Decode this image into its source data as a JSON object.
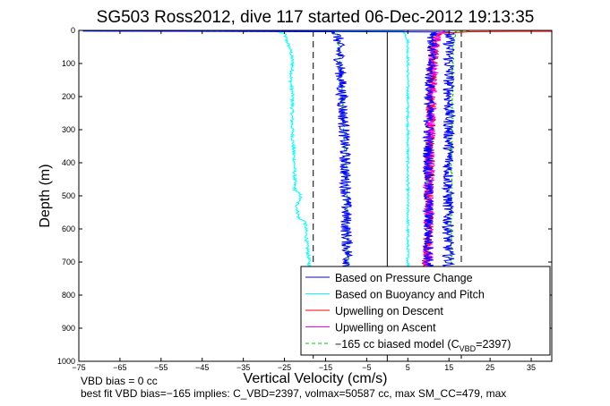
{
  "chart_data": {
    "type": "line",
    "title": "SG503 Ross2012, dive 117 started 06-Dec-2012 19:13:35",
    "xlabel": "Vertical Velocity (cm/s)",
    "ylabel": "Depth (m)",
    "xlim": [
      -75,
      40
    ],
    "ylim": [
      0,
      1000
    ],
    "y_reversed": true,
    "xticks": [
      -75,
      -65,
      -55,
      -45,
      -35,
      -25,
      -15,
      -5,
      5,
      15,
      25,
      35
    ],
    "xtick_labels": [
      "−75",
      "−65",
      "−55",
      "−45",
      "−35",
      "−25",
      "−15",
      "−5",
      "5",
      "15",
      "25",
      "35"
    ],
    "yticks": [
      0,
      100,
      200,
      300,
      400,
      500,
      600,
      700,
      800,
      900,
      1000
    ],
    "grid": false,
    "legend_position": "bottom-right",
    "legend": [
      {
        "label": "Based on Pressure Change",
        "color": "#0000ff",
        "dash": "solid"
      },
      {
        "label": "Based on Buoyancy and Pitch",
        "color": "#00ffff",
        "dash": "solid"
      },
      {
        "label": "Upwelling on Descent",
        "color": "#ff0000",
        "dash": "solid"
      },
      {
        "label": "Upwelling on Ascent",
        "color": "#ff00ff",
        "dash": "solid"
      },
      {
        "label_pre": "−165 cc biased model (C",
        "label_sub": "VBD",
        "label_post": "=2397)",
        "color": "#00cc00",
        "dash": "dashed"
      }
    ],
    "series": [
      {
        "color": "#00ffff",
        "noise": 0.4,
        "points": [
          [
            -74,
            2
          ],
          [
            -27,
            3
          ],
          [
            -25,
            10
          ],
          [
            -24.5,
            30
          ],
          [
            -23.5,
            60
          ],
          [
            -23,
            100
          ],
          [
            -23.5,
            150
          ],
          [
            -23,
            200
          ],
          [
            -23.2,
            260
          ],
          [
            -23,
            320
          ],
          [
            -22.6,
            400
          ],
          [
            -22.5,
            480
          ],
          [
            -21,
            500
          ],
          [
            -22,
            530
          ],
          [
            -21.5,
            570
          ],
          [
            -20,
            575
          ],
          [
            -19.5,
            650
          ],
          [
            -19,
            700
          ],
          [
            -19,
            720
          ]
        ]
      },
      {
        "color": "#00ffff",
        "noise": 0.3,
        "points": [
          [
            -60,
            1
          ],
          [
            4,
            2
          ],
          [
            5,
            30
          ],
          [
            5,
            700
          ],
          [
            5.3,
            720
          ]
        ]
      },
      {
        "color": "#00cc00",
        "noise": 0.25,
        "points": [
          [
            -70,
            2
          ],
          [
            -14,
            4
          ],
          [
            -12,
            10
          ],
          [
            -11.5,
            100
          ],
          [
            -11,
            200
          ],
          [
            -10.5,
            300
          ],
          [
            -10,
            400
          ],
          [
            -9.8,
            500
          ],
          [
            -9.8,
            600
          ],
          [
            -9.5,
            700
          ],
          [
            -9.3,
            720
          ]
        ]
      },
      {
        "color": "#00cc00",
        "noise": 0.25,
        "points": [
          [
            20,
            1
          ],
          [
            16.5,
            4
          ],
          [
            16,
            50
          ],
          [
            15.8,
            200
          ],
          [
            15.6,
            400
          ],
          [
            15.5,
            600
          ],
          [
            15.5,
            720
          ]
        ]
      },
      {
        "color": "#0000ff",
        "noise": 1.4,
        "points": [
          [
            -74,
            2
          ],
          [
            -13,
            4
          ],
          [
            -12,
            20
          ],
          [
            -11.5,
            100
          ],
          [
            -11,
            200
          ],
          [
            -10.5,
            300
          ],
          [
            -10.3,
            400
          ],
          [
            -10,
            500
          ],
          [
            -10,
            600
          ],
          [
            -9.5,
            700
          ],
          [
            -9.5,
            720
          ]
        ]
      },
      {
        "color": "#0000ff",
        "noise": 1.4,
        "points": [
          [
            -40,
            2
          ],
          [
            15,
            5
          ],
          [
            15,
            100
          ],
          [
            15,
            300
          ],
          [
            14.8,
            500
          ],
          [
            14.8,
            650
          ],
          [
            15,
            720
          ]
        ]
      },
      {
        "color": "#ff0000",
        "noise": 1.2,
        "points": [
          [
            40,
            3
          ],
          [
            30,
            3
          ],
          [
            20,
            4
          ],
          [
            12,
            10
          ],
          [
            11,
            100
          ],
          [
            10.5,
            300
          ],
          [
            10,
            500
          ],
          [
            10,
            600
          ],
          [
            9.5,
            700
          ],
          [
            9.5,
            720
          ]
        ]
      },
      {
        "color": "#ff00ff",
        "noise": 1.3,
        "points": [
          [
            14,
            2
          ],
          [
            12,
            10
          ],
          [
            11,
            100
          ],
          [
            10.5,
            300
          ],
          [
            10,
            500
          ],
          [
            10,
            600
          ],
          [
            10,
            700
          ],
          [
            10,
            720
          ]
        ]
      },
      {
        "color": "#0000ff",
        "noise": 1.3,
        "points": [
          [
            12,
            3
          ],
          [
            11,
            20
          ],
          [
            10.5,
            100
          ],
          [
            10,
            300
          ],
          [
            10,
            500
          ],
          [
            10,
            650
          ],
          [
            10,
            720
          ]
        ]
      }
    ],
    "vertical_lines": [
      {
        "x": -18,
        "style": "dashed"
      },
      {
        "x": 0,
        "style": "solid"
      },
      {
        "x": 18,
        "style": "dashed"
      }
    ]
  },
  "footnotes": [
    "VBD bias = 0 cc",
    "best fit VBD bias=−165 implies: C_VBD=2397, volmax=50587 cc, max SM_CC=479, max"
  ]
}
